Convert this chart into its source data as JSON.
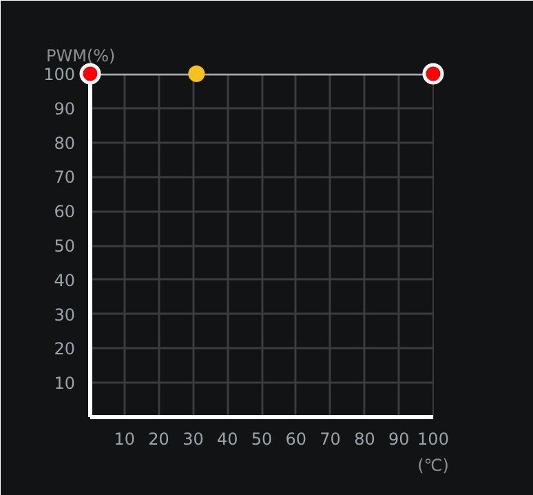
{
  "chart_data": {
    "type": "line",
    "xlabel": "(℃)",
    "ylabel": "PWM(%)",
    "xlim": [
      0,
      100
    ],
    "ylim": [
      0,
      100
    ],
    "xticks": [
      10,
      20,
      30,
      40,
      50,
      60,
      70,
      80,
      90,
      100
    ],
    "yticks": [
      10,
      20,
      30,
      40,
      50,
      60,
      70,
      80,
      90,
      100
    ],
    "grid": true,
    "series": [
      {
        "color": "#a8a8a8",
        "x": [
          0,
          100
        ],
        "values": [
          100,
          100
        ]
      },
      {
        "type": "scatter",
        "marker": "circle",
        "color": "#ff0000",
        "x": [
          0,
          100
        ],
        "values": [
          100,
          100
        ]
      },
      {
        "type": "scatter",
        "marker": "circle",
        "color": "#f5c21b",
        "x": [
          31
        ],
        "values": [
          100
        ]
      }
    ]
  }
}
